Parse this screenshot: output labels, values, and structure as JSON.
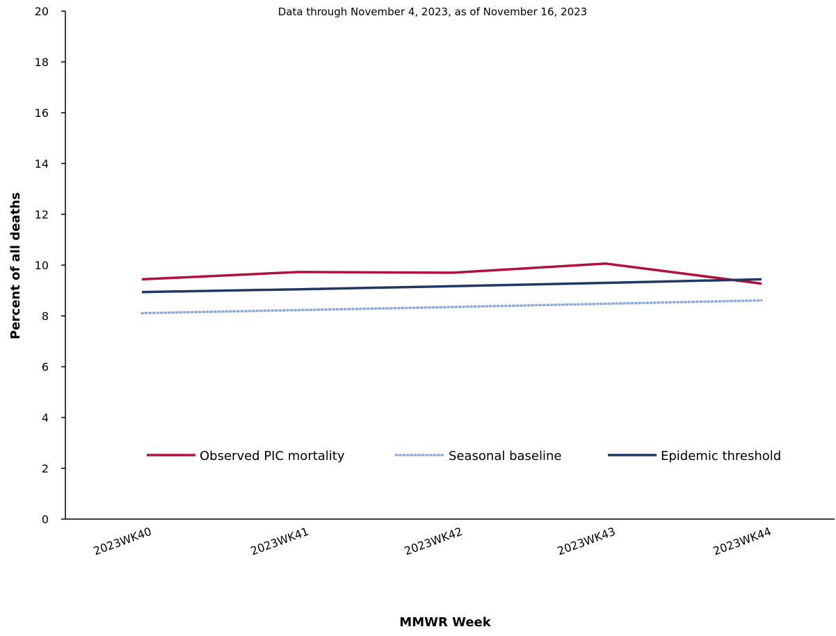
{
  "chart_data": {
    "type": "line",
    "subtitle": "Data through November 4, 2023, as of November 16, 2023",
    "xlabel": "MMWR Week",
    "ylabel": "Percent of all deaths",
    "ylim": [
      0,
      20
    ],
    "yticks": [
      "0",
      "2",
      "4",
      "6",
      "8",
      "10",
      "12",
      "14",
      "16",
      "18",
      "20"
    ],
    "categories": [
      "2023WK40",
      "2023WK41",
      "2023WK42",
      "2023WK43",
      "2023WK44"
    ],
    "grid": false,
    "legend_position": "inside-bottom",
    "series": [
      {
        "name": "Observed PIC mortality",
        "values": [
          9.44,
          9.73,
          9.7,
          10.06,
          9.27
        ],
        "color": "#b0123f",
        "style": "solid"
      },
      {
        "name": "Seasonal baseline",
        "values": [
          8.11,
          8.23,
          8.35,
          8.48,
          8.61
        ],
        "color": "#8eaadb",
        "style": "dotted"
      },
      {
        "name": "Epidemic threshold",
        "values": [
          8.94,
          9.05,
          9.17,
          9.3,
          9.44
        ],
        "color": "#203864",
        "style": "solid"
      }
    ]
  }
}
